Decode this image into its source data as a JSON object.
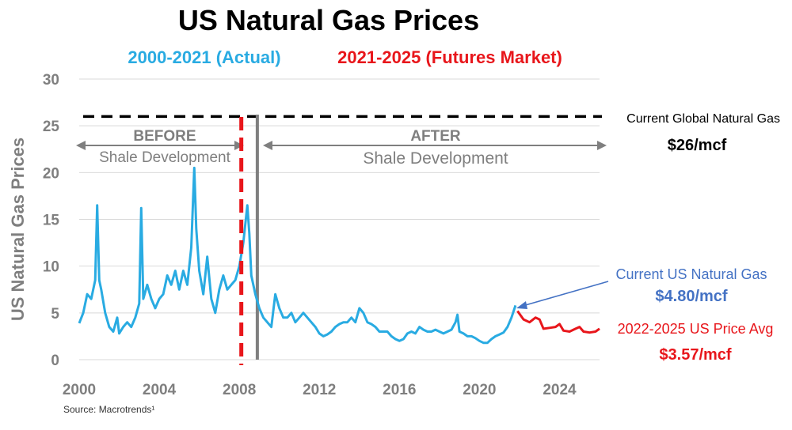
{
  "colors": {
    "actual": "#29abe2",
    "futures": "#e8161b",
    "grid": "#d9d9d9",
    "axis_text": "#7f7f7f",
    "dark": "#1a1a1a",
    "annotation_gray": "#7f7f7f",
    "callout_blue": "#4472c4"
  },
  "chart_data": {
    "type": "line",
    "title": "US Natural Gas Prices",
    "subtitle_actual": "2000-2021 (Actual)",
    "subtitle_futures": "2021-2025 (Futures Market)",
    "ylabel": "US Natural Gas Prices",
    "xlabel": "",
    "xlim": [
      2000,
      2026
    ],
    "ylim": [
      0,
      30
    ],
    "yticks": [
      0,
      5,
      10,
      15,
      20,
      25,
      30
    ],
    "xticks": [
      2000,
      2004,
      2008,
      2012,
      2016,
      2020,
      2024
    ],
    "grid": "horizontal",
    "series": [
      {
        "name": "2000-2021 (Actual)",
        "color": "#29abe2",
        "x": [
          2000.0,
          2000.2,
          2000.4,
          2000.6,
          2000.8,
          2000.9,
          2001.0,
          2001.1,
          2001.3,
          2001.5,
          2001.7,
          2001.9,
          2002.0,
          2002.2,
          2002.4,
          2002.6,
          2002.8,
          2003.0,
          2003.1,
          2003.2,
          2003.4,
          2003.6,
          2003.8,
          2004.0,
          2004.2,
          2004.4,
          2004.6,
          2004.8,
          2005.0,
          2005.2,
          2005.4,
          2005.6,
          2005.75,
          2005.85,
          2006.0,
          2006.2,
          2006.4,
          2006.6,
          2006.8,
          2007.0,
          2007.2,
          2007.4,
          2007.6,
          2007.8,
          2008.0,
          2008.2,
          2008.4,
          2008.5,
          2008.6,
          2008.8,
          2009.0,
          2009.2,
          2009.4,
          2009.6,
          2009.8,
          2010.0,
          2010.2,
          2010.4,
          2010.6,
          2010.8,
          2011.0,
          2011.2,
          2011.4,
          2011.6,
          2011.8,
          2012.0,
          2012.2,
          2012.4,
          2012.6,
          2012.8,
          2013.0,
          2013.2,
          2013.4,
          2013.6,
          2013.8,
          2014.0,
          2014.2,
          2014.4,
          2014.6,
          2014.8,
          2015.0,
          2015.2,
          2015.4,
          2015.6,
          2015.8,
          2016.0,
          2016.2,
          2016.4,
          2016.6,
          2016.8,
          2017.0,
          2017.2,
          2017.4,
          2017.6,
          2017.8,
          2018.0,
          2018.2,
          2018.4,
          2018.6,
          2018.8,
          2018.9,
          2019.0,
          2019.2,
          2019.4,
          2019.6,
          2019.8,
          2020.0,
          2020.2,
          2020.4,
          2020.6,
          2020.8,
          2021.0,
          2021.2,
          2021.4,
          2021.6,
          2021.8
        ],
        "y": [
          3.9,
          5.0,
          7.0,
          6.5,
          8.5,
          16.5,
          8.5,
          7.5,
          5.0,
          3.5,
          3.0,
          4.5,
          2.8,
          3.5,
          4.0,
          3.5,
          4.5,
          6.0,
          16.2,
          6.5,
          8.0,
          6.5,
          5.5,
          6.5,
          7.0,
          9.0,
          8.0,
          9.5,
          7.5,
          9.5,
          8.0,
          12.0,
          20.5,
          14.0,
          9.5,
          7.0,
          11.0,
          6.5,
          5.0,
          7.5,
          9.0,
          7.5,
          8.0,
          8.5,
          10.0,
          12.5,
          16.5,
          13.5,
          9.0,
          7.0,
          5.5,
          4.5,
          4.0,
          3.5,
          7.0,
          5.5,
          4.5,
          4.5,
          5.0,
          4.0,
          4.5,
          5.0,
          4.5,
          4.0,
          3.5,
          2.8,
          2.5,
          2.7,
          3.0,
          3.5,
          3.8,
          4.0,
          4.0,
          4.5,
          4.0,
          5.5,
          5.0,
          4.0,
          3.8,
          3.5,
          3.0,
          3.0,
          3.0,
          2.5,
          2.2,
          2.0,
          2.2,
          2.8,
          3.0,
          2.8,
          3.5,
          3.2,
          3.0,
          3.0,
          3.2,
          3.0,
          2.8,
          3.0,
          3.2,
          4.0,
          4.8,
          3.0,
          2.8,
          2.5,
          2.5,
          2.3,
          2.0,
          1.8,
          1.8,
          2.2,
          2.5,
          2.7,
          2.9,
          3.5,
          4.5,
          5.8
        ]
      },
      {
        "name": "2021-2025 (Futures Market)",
        "color": "#e8161b",
        "x": [
          2021.9,
          2022.2,
          2022.5,
          2022.8,
          2023.0,
          2023.2,
          2023.5,
          2023.8,
          2024.0,
          2024.2,
          2024.5,
          2024.8,
          2025.0,
          2025.2,
          2025.5,
          2025.8,
          2026.0
        ],
        "y": [
          5.2,
          4.3,
          4.0,
          4.5,
          4.3,
          3.3,
          3.4,
          3.5,
          3.8,
          3.1,
          3.0,
          3.3,
          3.5,
          3.0,
          2.9,
          3.0,
          3.3
        ]
      }
    ],
    "annotations": {
      "before_label": "BEFORE",
      "before_sub": "Shale Development",
      "after_label": "AFTER",
      "after_sub": "Shale Development",
      "global_label": "Current Global Natural Gas",
      "global_price": "$26/mcf",
      "global_level": 26,
      "us_label": "Current US Natural Gas",
      "us_price": "$4.80/mcf",
      "avg_label": "2022-2025 US Price Avg",
      "avg_price": "$3.57/mcf",
      "red_divider_x": 2008.1,
      "gray_divider_x": 2008.9
    },
    "source": "Source: Macrotrends¹"
  }
}
